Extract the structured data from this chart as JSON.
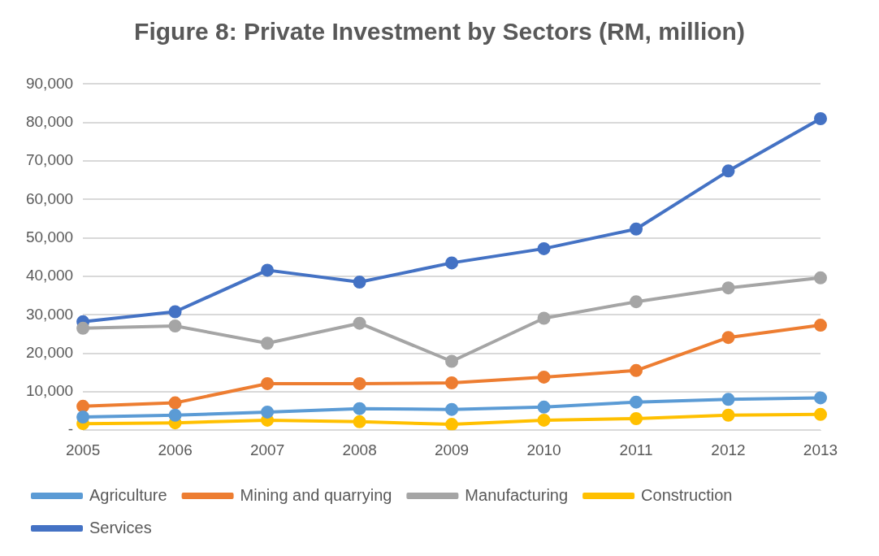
{
  "chart_data": {
    "type": "line",
    "title": "Figure 8: Private Investment by Sectors (RM, million)",
    "categories": [
      "2005",
      "2006",
      "2007",
      "2008",
      "2009",
      "2010",
      "2011",
      "2012",
      "2013"
    ],
    "series": [
      {
        "name": "Agriculture",
        "color": "#5b9bd5",
        "values": [
          3400,
          3900,
          4700,
          5600,
          5400,
          6000,
          7300,
          8000,
          8400
        ]
      },
      {
        "name": "Mining and quarrying",
        "color": "#ed7d31",
        "values": [
          6200,
          7100,
          12100,
          12100,
          12300,
          13800,
          15500,
          24100,
          27300
        ]
      },
      {
        "name": "Manufacturing",
        "color": "#a5a5a5",
        "values": [
          26500,
          27100,
          22600,
          27800,
          17900,
          29100,
          33400,
          37000,
          39600
        ]
      },
      {
        "name": "Construction",
        "color": "#ffc000",
        "values": [
          1700,
          1900,
          2600,
          2200,
          1500,
          2600,
          3000,
          3900,
          4100
        ]
      },
      {
        "name": "Services",
        "color": "#4472c4",
        "values": [
          28200,
          30800,
          41600,
          38500,
          43500,
          47200,
          52300,
          67400,
          81000
        ]
      }
    ],
    "ylim": [
      0,
      90000
    ],
    "yticks": [
      {
        "value": 0,
        "label": "-"
      },
      {
        "value": 10000,
        "label": "10,000"
      },
      {
        "value": 20000,
        "label": "20,000"
      },
      {
        "value": 30000,
        "label": "30,000"
      },
      {
        "value": 40000,
        "label": "40,000"
      },
      {
        "value": 50000,
        "label": "50,000"
      },
      {
        "value": 60000,
        "label": "60,000"
      },
      {
        "value": 70000,
        "label": "70,000"
      },
      {
        "value": 80000,
        "label": "80,000"
      },
      {
        "value": 90000,
        "label": "90,000"
      }
    ],
    "grid": "y",
    "legend": "bottom",
    "marker": "circle",
    "line_style": "solid"
  }
}
